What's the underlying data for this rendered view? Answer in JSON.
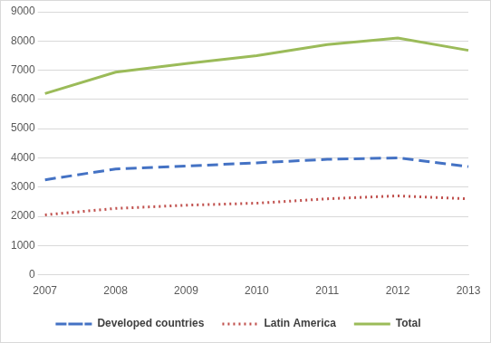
{
  "chart_data": {
    "type": "line",
    "categories": [
      "2007",
      "2008",
      "2009",
      "2010",
      "2011",
      "2012",
      "2013"
    ],
    "series": [
      {
        "name": "Developed countries",
        "color": "#4472c4",
        "line_style": "dashed",
        "values": [
          3250,
          3620,
          3720,
          3830,
          3950,
          4000,
          3700
        ]
      },
      {
        "name": "Latin America",
        "color": "#c0504d",
        "line_style": "dotted",
        "values": [
          2050,
          2270,
          2380,
          2450,
          2600,
          2700,
          2600
        ]
      },
      {
        "name": "Total",
        "color": "#9bbb59",
        "line_style": "solid",
        "values": [
          6200,
          6930,
          7230,
          7500,
          7880,
          8100,
          7680
        ]
      }
    ],
    "ylim": [
      0,
      9000
    ],
    "yticks": [
      0,
      1000,
      2000,
      3000,
      4000,
      5000,
      6000,
      7000,
      8000,
      9000
    ],
    "grid": true,
    "legend": "bottom"
  }
}
